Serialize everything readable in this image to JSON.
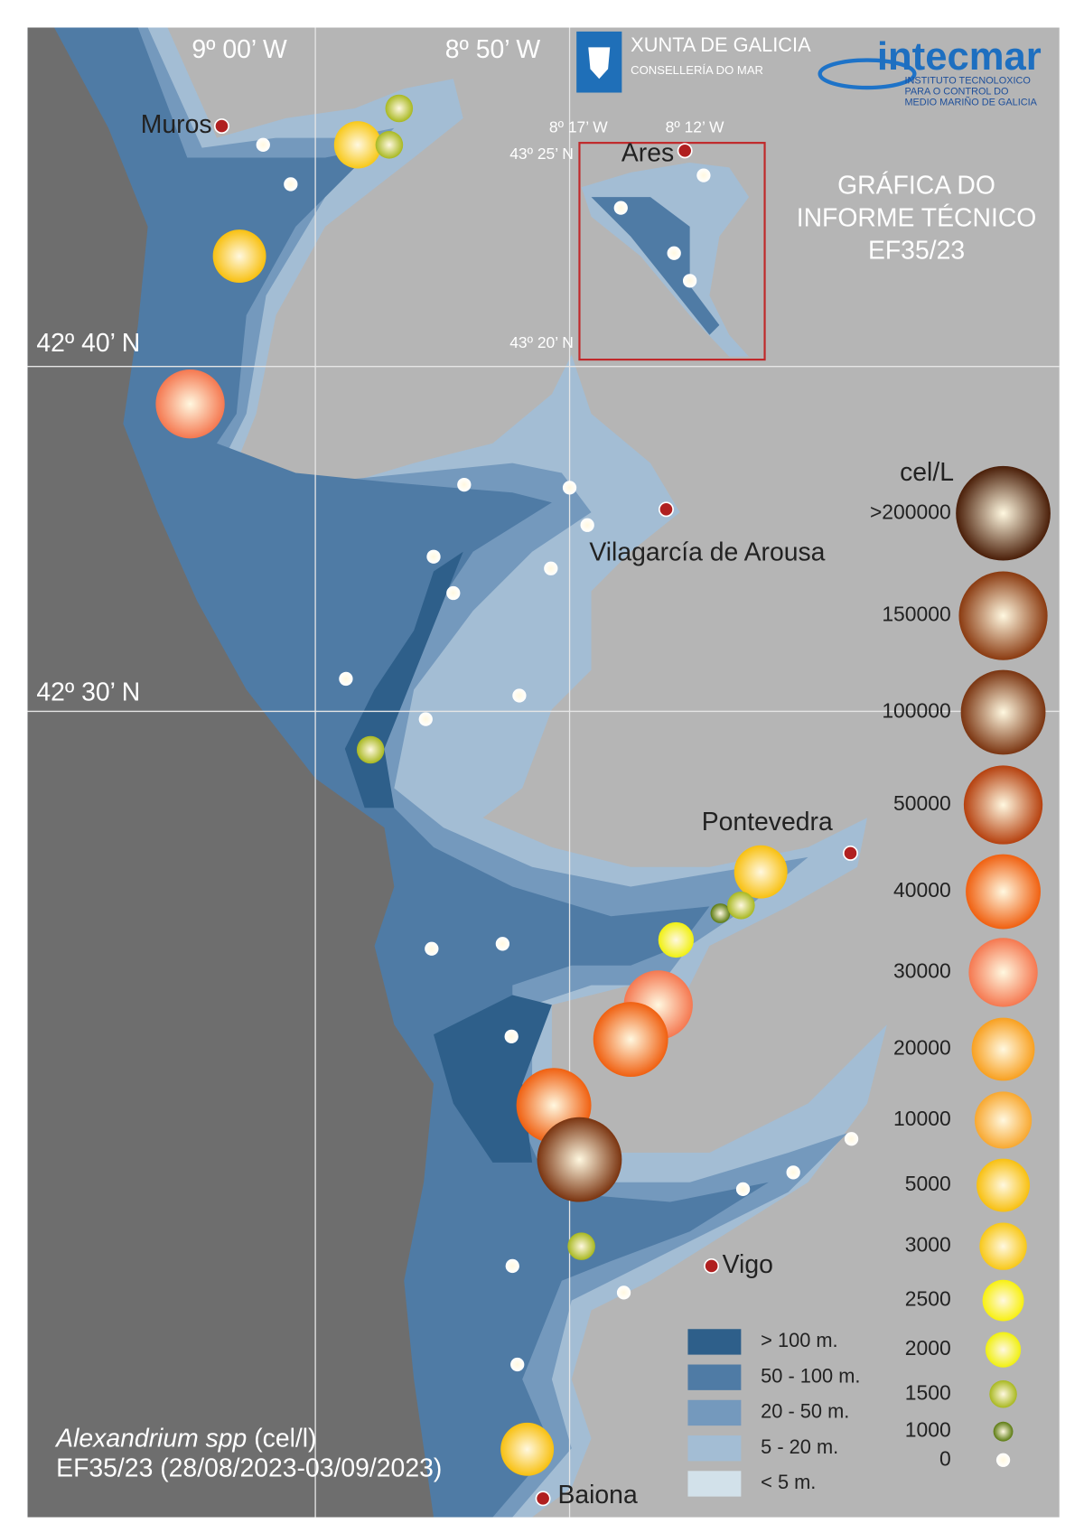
{
  "header": {
    "lon_labels": [
      "9º 00’ W",
      "8º 50’ W"
    ],
    "logo_xunta": "XUNTA DE GALICIA",
    "logo_xunta_sub": "CONSELLERÍA DO MAR",
    "logo_intecmar": "intecmar",
    "logo_intecmar_sub": [
      "INSTITUTO TECNOLOXICO",
      "PARA O CONTROL DO",
      "MEDIO MARIÑO DE GALICIA"
    ]
  },
  "lat_labels": [
    "42º 40’ N",
    "42º 30’ N"
  ],
  "inset": {
    "lon_labels": [
      "8º 17’ W",
      "8º 12’ W"
    ],
    "lat_labels": [
      "43º 25’ N",
      "43º 20’ N"
    ]
  },
  "places": [
    "Muros",
    "Ares",
    "Vilagarcía de Arousa",
    "Pontevedra",
    "Vigo",
    "Baiona"
  ],
  "report_title": [
    "GRÁFICA DO",
    "INFORME TÉCNICO",
    "EF35/23"
  ],
  "legend": {
    "title": "cel/L",
    "scale": [
      {
        "value": 200000,
        "label": ">200000",
        "color": "#4a1e08"
      },
      {
        "value": 150000,
        "color": "#8a3a10"
      },
      {
        "value": 100000,
        "color": "#7a3410"
      },
      {
        "value": 50000,
        "color": "#b5400e"
      },
      {
        "value": 40000,
        "color": "#f06010"
      },
      {
        "value": 30000,
        "color": "#f57850"
      },
      {
        "value": 20000,
        "color": "#f8a020"
      },
      {
        "value": 10000,
        "color": "#f8a830"
      },
      {
        "value": 5000,
        "color": "#f8c010"
      },
      {
        "value": 3000,
        "color": "#f8c818"
      },
      {
        "value": 2500,
        "color": "#f8f010"
      },
      {
        "value": 2000,
        "color": "#f0f010"
      },
      {
        "value": 1500,
        "color": "#a8b820"
      },
      {
        "value": 1000,
        "color": "#5a7a10"
      },
      {
        "value": 0,
        "color": "#ffffff"
      }
    ]
  },
  "depth_legend": [
    {
      "label": "> 100 m.",
      "color": "#2e5f8a"
    },
    {
      "label": "50 - 100 m.",
      "color": "#4f7ba5"
    },
    {
      "label": "20 - 50 m.",
      "color": "#7499bd"
    },
    {
      "label": "5 - 20 m.",
      "color": "#a3bdd4"
    },
    {
      "label": "< 5 m.",
      "color": "#d2e1ea"
    }
  ],
  "caption": {
    "species": "Alexandrium spp",
    "unit": "(cel/l)",
    "period": "EF35/23 (28/08/2023-03/09/2023)"
  },
  "samples": [
    {
      "value": 1500
    },
    {
      "value": 3000
    },
    {
      "value": 1500
    },
    {
      "value": 0
    },
    {
      "value": 0
    },
    {
      "value": 5000
    },
    {
      "value": 30000
    },
    {
      "value": 0
    },
    {
      "value": 0
    },
    {
      "value": 0
    },
    {
      "value": 0
    },
    {
      "value": 0
    },
    {
      "value": 0
    },
    {
      "value": 0
    },
    {
      "value": 0
    },
    {
      "value": 0
    },
    {
      "value": 0
    },
    {
      "value": 0
    },
    {
      "value": 0
    },
    {
      "value": 0
    },
    {
      "value": 1500
    },
    {
      "value": 5000
    },
    {
      "value": 1000
    },
    {
      "value": 1500
    },
    {
      "value": 2000
    },
    {
      "value": 0
    },
    {
      "value": 0
    },
    {
      "value": 30000
    },
    {
      "value": 40000
    },
    {
      "value": 0
    },
    {
      "value": 40000
    },
    {
      "value": 100000
    },
    {
      "value": 0
    },
    {
      "value": 0
    },
    {
      "value": 0
    },
    {
      "value": 1500
    },
    {
      "value": 0
    },
    {
      "value": 0
    },
    {
      "value": 0
    },
    {
      "value": 5000
    }
  ]
}
